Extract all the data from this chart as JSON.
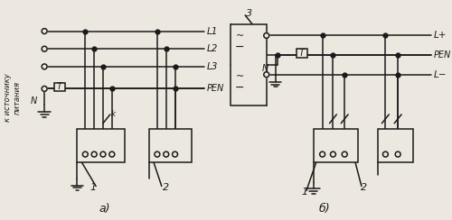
{
  "bg": "#ece8e0",
  "lc": "#1a1a1a",
  "lw": 1.1,
  "ds": 3.5,
  "title_a": "а)",
  "title_b": "б)",
  "lbl_source": "к источнику\nпитания",
  "lbl_L1": "L1",
  "lbl_L2": "L2",
  "lbl_L3": "L3",
  "lbl_PEN": "PEN",
  "lbl_Lp": "L+",
  "lbl_Lm": "L−",
  "lbl_1": "1",
  "lbl_2": "2",
  "lbl_3": "3",
  "lbl_T": "T",
  "lbl_k": "k",
  "lbl_N": "N"
}
